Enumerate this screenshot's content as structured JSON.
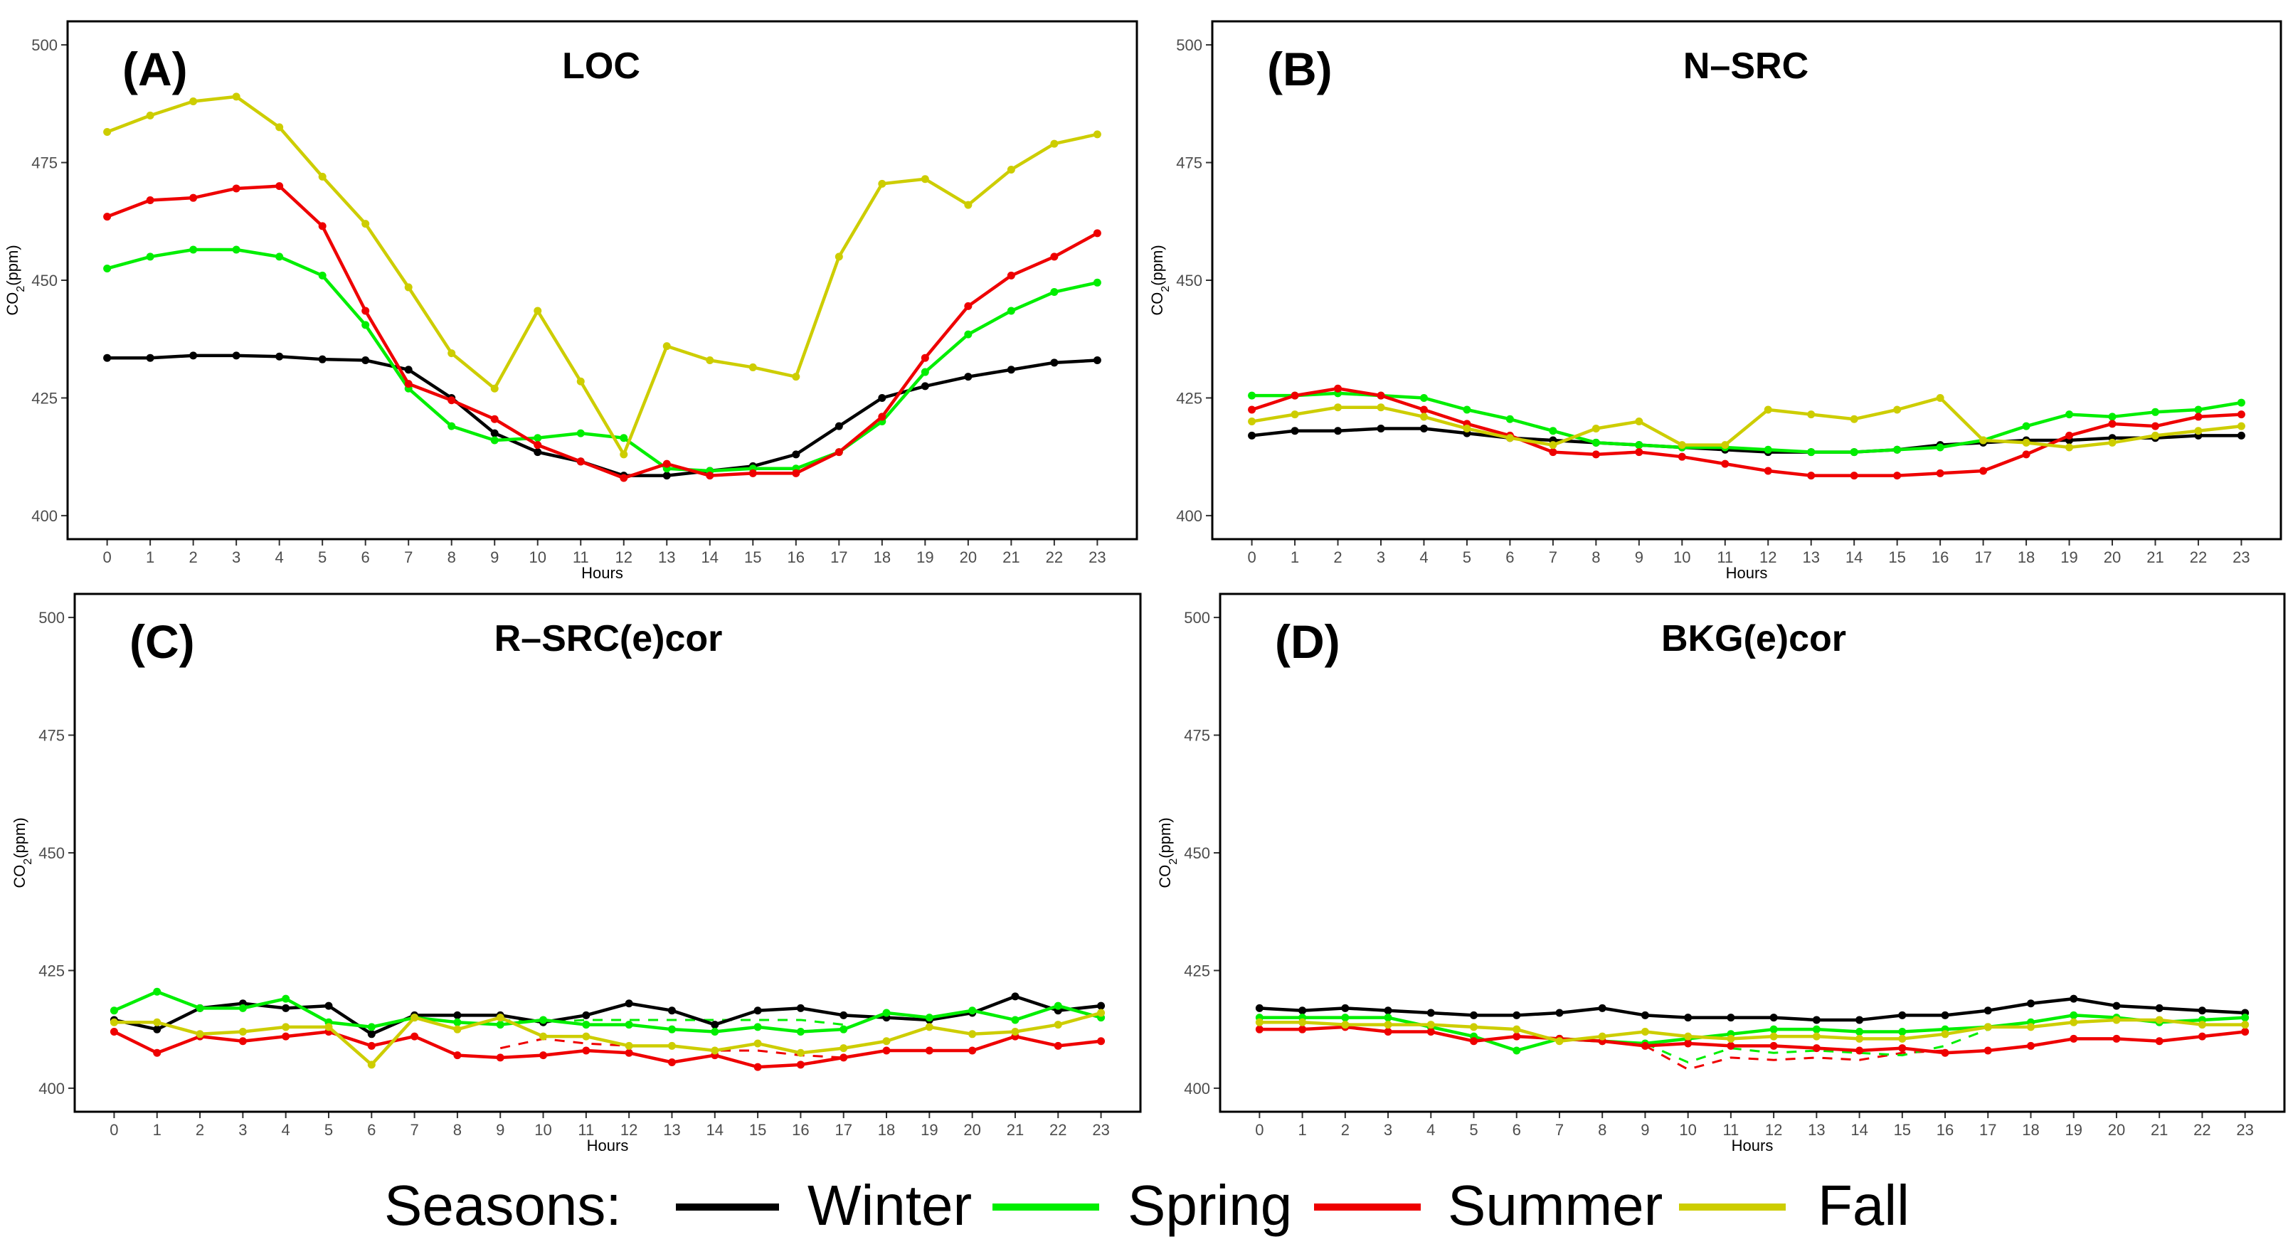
{
  "legend": {
    "title": "Seasons:",
    "items": [
      {
        "label": "Winter",
        "color": "#000000"
      },
      {
        "label": "Spring",
        "color": "#00ee00"
      },
      {
        "label": "Summer",
        "color": "#ee0000"
      },
      {
        "label": "Fall",
        "color": "#cdcd00"
      }
    ]
  },
  "chart_data": [
    {
      "type": "line",
      "panel": "(A)",
      "title": "LOC",
      "xlabel": "Hours",
      "ylabel": "CO2(ppm)",
      "ylim": [
        395,
        505
      ],
      "yticks": [
        400,
        425,
        450,
        475,
        500
      ],
      "x": [
        0,
        1,
        2,
        3,
        4,
        5,
        6,
        7,
        8,
        9,
        10,
        11,
        12,
        13,
        14,
        15,
        16,
        17,
        18,
        19,
        20,
        21,
        22,
        23
      ],
      "series": [
        {
          "name": "Winter",
          "color": "#000000",
          "values": [
            433.5,
            433.5,
            434,
            434,
            433.8,
            433.2,
            433,
            431,
            425,
            417.5,
            413.5,
            411.5,
            408.5,
            408.5,
            409.5,
            410.5,
            413,
            419,
            425,
            427.5,
            429.5,
            431,
            432.5,
            433
          ]
        },
        {
          "name": "Spring",
          "color": "#00ee00",
          "values": [
            452.5,
            455,
            456.5,
            456.5,
            455,
            451,
            440.5,
            427,
            419,
            416,
            416.5,
            417.5,
            416.5,
            410,
            409.5,
            410,
            410,
            413.5,
            420,
            430.5,
            438.5,
            443.5,
            447.5,
            449.5
          ]
        },
        {
          "name": "Summer",
          "color": "#ee0000",
          "values": [
            463.5,
            467,
            467.5,
            469.5,
            470,
            461.5,
            443.5,
            428,
            424.5,
            420.5,
            415,
            411.5,
            408,
            411,
            408.5,
            409,
            409,
            413.5,
            421,
            433.5,
            444.5,
            451,
            455,
            460
          ]
        },
        {
          "name": "Fall",
          "color": "#cdcd00",
          "values": [
            481.5,
            485,
            488,
            489,
            482.5,
            472,
            462,
            448.5,
            434.5,
            427,
            443.5,
            428.5,
            413,
            436,
            433,
            431.5,
            429.5,
            455,
            470.5,
            471.5,
            466,
            473.5,
            479,
            481
          ]
        }
      ],
      "dashed_series": []
    },
    {
      "type": "line",
      "panel": "(B)",
      "title": "N–SRC",
      "xlabel": "Hours",
      "ylabel": "CO2(ppm)",
      "ylim": [
        395,
        505
      ],
      "yticks": [
        400,
        425,
        450,
        475,
        500
      ],
      "x": [
        0,
        1,
        2,
        3,
        4,
        5,
        6,
        7,
        8,
        9,
        10,
        11,
        12,
        13,
        14,
        15,
        16,
        17,
        18,
        19,
        20,
        21,
        22,
        23
      ],
      "series": [
        {
          "name": "Winter",
          "color": "#000000",
          "values": [
            417,
            418,
            418,
            418.5,
            418.5,
            417.5,
            416.5,
            416,
            415.5,
            415,
            414.5,
            414,
            413.5,
            413.5,
            413.5,
            414,
            415,
            415.5,
            416,
            416,
            416.5,
            416.5,
            417,
            417
          ]
        },
        {
          "name": "Spring",
          "color": "#00ee00",
          "values": [
            425.5,
            425.5,
            426,
            425.5,
            425,
            422.5,
            420.5,
            418,
            415.5,
            415,
            414.5,
            414.5,
            414,
            413.5,
            413.5,
            414,
            414.5,
            416,
            419,
            421.5,
            421,
            422,
            422.5,
            424
          ]
        },
        {
          "name": "Summer",
          "color": "#ee0000",
          "values": [
            422.5,
            425.5,
            427,
            425.5,
            422.5,
            419.5,
            417,
            413.5,
            413,
            413.5,
            412.5,
            411,
            409.5,
            408.5,
            408.5,
            408.5,
            409,
            409.5,
            413,
            417,
            419.5,
            419,
            421,
            421.5
          ]
        },
        {
          "name": "Fall",
          "color": "#cdcd00",
          "values": [
            420,
            421.5,
            423,
            423,
            421,
            418.5,
            416.5,
            415,
            418.5,
            420,
            415,
            415,
            422.5,
            421.5,
            420.5,
            422.5,
            425,
            416,
            415.5,
            414.5,
            415.5,
            417,
            418,
            419
          ]
        }
      ],
      "dashed_series": []
    },
    {
      "type": "line",
      "panel": "(C)",
      "title": "R–SRC(e)cor",
      "xlabel": "Hours",
      "ylabel": "CO2(ppm)",
      "ylim": [
        395,
        505
      ],
      "yticks": [
        400,
        425,
        450,
        475,
        500
      ],
      "x": [
        0,
        1,
        2,
        3,
        4,
        5,
        6,
        7,
        8,
        9,
        10,
        11,
        12,
        13,
        14,
        15,
        16,
        17,
        18,
        19,
        20,
        21,
        22,
        23
      ],
      "series": [
        {
          "name": "Winter",
          "color": "#000000",
          "values": [
            414.5,
            412.5,
            417,
            418,
            417,
            417.5,
            411.5,
            415.5,
            415.5,
            415.5,
            414,
            415.5,
            418,
            416.5,
            413.5,
            416.5,
            417,
            415.5,
            415,
            414.5,
            416,
            419.5,
            416.5,
            417.5
          ]
        },
        {
          "name": "Spring",
          "color": "#00ee00",
          "values": [
            416.5,
            420.5,
            417,
            417,
            419,
            414,
            413,
            415,
            414,
            413.5,
            414.5,
            413.5,
            413.5,
            412.5,
            412,
            413,
            412,
            412.5,
            416,
            415,
            416.5,
            414.5,
            417.5,
            415
          ]
        },
        {
          "name": "Summer",
          "color": "#ee0000",
          "values": [
            412,
            407.5,
            411,
            410,
            411,
            412,
            409,
            411,
            407,
            406.5,
            407,
            408,
            407.5,
            405.5,
            407,
            404.5,
            405,
            406.5,
            408,
            408,
            408,
            411,
            409,
            410
          ]
        },
        {
          "name": "Fall",
          "color": "#cdcd00",
          "values": [
            414,
            414,
            411.5,
            412,
            413,
            413,
            405,
            415,
            412.5,
            415,
            411,
            411,
            409,
            409,
            408,
            409.5,
            407.5,
            408.5,
            410,
            413,
            411.5,
            412,
            413.5,
            416
          ]
        }
      ],
      "dashed_series": [
        {
          "name": "Spring",
          "color": "#00ee00",
          "x": [
            9,
            10,
            11,
            12,
            13,
            14,
            15,
            16,
            17
          ],
          "values": [
            414.5,
            414,
            414.5,
            414.5,
            414.5,
            414.5,
            414.5,
            414.5,
            413.5
          ]
        },
        {
          "name": "Summer",
          "color": "#ee0000",
          "x": [
            9,
            10,
            11,
            12,
            13,
            14,
            15,
            16,
            17
          ],
          "values": [
            408.5,
            410.5,
            409.5,
            409,
            409,
            408,
            408,
            407,
            406.5
          ]
        }
      ]
    },
    {
      "type": "line",
      "panel": "(D)",
      "title": "BKG(e)cor",
      "xlabel": "Hours",
      "ylabel": "CO2(ppm)",
      "ylim": [
        395,
        505
      ],
      "yticks": [
        400,
        425,
        450,
        475,
        500
      ],
      "x": [
        0,
        1,
        2,
        3,
        4,
        5,
        6,
        7,
        8,
        9,
        10,
        11,
        12,
        13,
        14,
        15,
        16,
        17,
        18,
        19,
        20,
        21,
        22,
        23
      ],
      "series": [
        {
          "name": "Winter",
          "color": "#000000",
          "values": [
            417,
            416.5,
            417,
            416.5,
            416,
            415.5,
            415.5,
            416,
            417,
            415.5,
            415,
            415,
            415,
            414.5,
            414.5,
            415.5,
            415.5,
            416.5,
            418,
            419,
            417.5,
            417,
            416.5,
            416
          ]
        },
        {
          "name": "Spring",
          "color": "#00ee00",
          "values": [
            415,
            415,
            415,
            415,
            413,
            411,
            408,
            410.5,
            410,
            409.5,
            410.5,
            411.5,
            412.5,
            412.5,
            412,
            412,
            412.5,
            413,
            414,
            415.5,
            415,
            414,
            414.5,
            415
          ]
        },
        {
          "name": "Summer",
          "color": "#ee0000",
          "values": [
            412.5,
            412.5,
            413,
            412,
            412,
            410,
            411,
            410.5,
            410,
            409,
            409.5,
            409,
            409,
            408.5,
            408,
            408.5,
            407.5,
            408,
            409,
            410.5,
            410.5,
            410,
            411,
            412
          ]
        },
        {
          "name": "Fall",
          "color": "#cdcd00",
          "values": [
            414,
            414,
            413.5,
            413.5,
            413.5,
            413,
            412.5,
            410,
            411,
            412,
            411,
            410.5,
            411,
            411,
            410.5,
            410.5,
            411.5,
            413,
            413,
            414,
            414.5,
            414.5,
            413.5,
            413.5
          ]
        }
      ],
      "dashed_series": [
        {
          "name": "Summer",
          "color": "#ee0000",
          "x": [
            9,
            10,
            11,
            12,
            13,
            14,
            15,
            16
          ],
          "values": [
            409,
            404,
            406.5,
            406,
            406.5,
            406,
            407.5,
            408
          ]
        },
        {
          "name": "Spring",
          "color": "#00ee00",
          "x": [
            9,
            10,
            11,
            12,
            13,
            14,
            15,
            16,
            17
          ],
          "values": [
            409.5,
            405.5,
            408.5,
            407.5,
            408,
            407.5,
            407,
            409,
            412.5
          ]
        }
      ]
    }
  ]
}
